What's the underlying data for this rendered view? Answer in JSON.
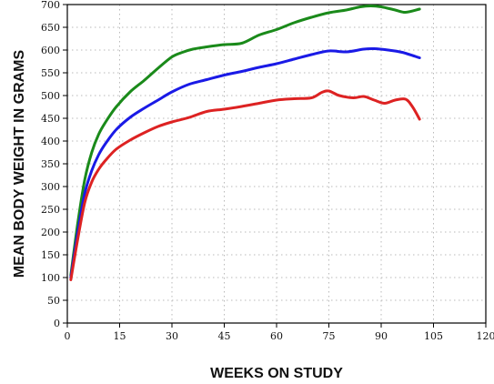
{
  "chart_data": {
    "type": "line",
    "title": "",
    "xlabel": "WEEKS ON STUDY",
    "ylabel": "MEAN BODY WEIGHT IN GRAMS",
    "xlim": [
      0,
      120
    ],
    "ylim": [
      0,
      700
    ],
    "x_ticks": [
      0,
      15,
      30,
      45,
      60,
      75,
      90,
      105,
      120
    ],
    "y_ticks": [
      0,
      50,
      100,
      150,
      200,
      250,
      300,
      350,
      400,
      450,
      500,
      550,
      600,
      650,
      700
    ],
    "grid": true,
    "series": [
      {
        "color": "#1a8a1a",
        "x": [
          1,
          3,
          5,
          7,
          9,
          11,
          14,
          18,
          22,
          26,
          30,
          33,
          36,
          40,
          45,
          50,
          55,
          60,
          65,
          70,
          75,
          80,
          84,
          87,
          90,
          94,
          97,
          101
        ],
        "y": [
          105,
          220,
          315,
          375,
          415,
          442,
          475,
          508,
          533,
          560,
          585,
          595,
          602,
          607,
          612,
          615,
          633,
          645,
          660,
          672,
          682,
          688,
          695,
          697,
          695,
          688,
          683,
          690
        ]
      },
      {
        "color": "#1a1ae6",
        "x": [
          1,
          3,
          5,
          7,
          9,
          11,
          14,
          18,
          22,
          26,
          30,
          35,
          40,
          45,
          50,
          55,
          60,
          65,
          70,
          75,
          80,
          85,
          88,
          92,
          96,
          101
        ],
        "y": [
          100,
          200,
          285,
          335,
          370,
          395,
          425,
          452,
          472,
          490,
          508,
          525,
          535,
          545,
          553,
          562,
          570,
          580,
          590,
          598,
          596,
          602,
          603,
          600,
          595,
          583
        ]
      },
      {
        "color": "#dd2222",
        "x": [
          1,
          3,
          5,
          7,
          9,
          11,
          14,
          18,
          22,
          26,
          30,
          35,
          40,
          45,
          50,
          55,
          60,
          65,
          70,
          73,
          75,
          78,
          82,
          85,
          88,
          91,
          94,
          97,
          99,
          101
        ],
        "y": [
          95,
          185,
          265,
          310,
          338,
          358,
          382,
          402,
          418,
          432,
          442,
          452,
          465,
          470,
          476,
          483,
          490,
          493,
          495,
          507,
          510,
          500,
          495,
          498,
          490,
          483,
          490,
          492,
          475,
          448
        ]
      }
    ]
  }
}
